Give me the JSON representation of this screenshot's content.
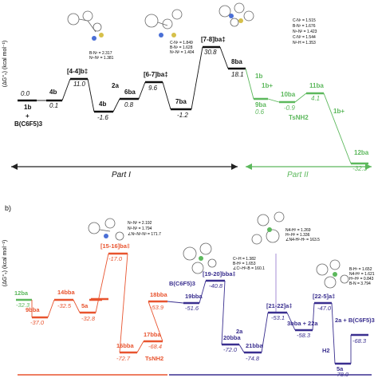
{
  "panel_a": {
    "ylabel": "(ΔG°ₛ) (kcal mol⁻¹)",
    "states": [
      {
        "label": "1b",
        "value": "0.0",
        "color": "black"
      },
      {
        "label": "+",
        "value": "",
        "color": "black"
      },
      {
        "label": "B(C6F5)3",
        "value": "",
        "color": "black"
      },
      {
        "label": "4b",
        "value": "0.1",
        "color": "black"
      },
      {
        "label": "[4-4]b‡",
        "value": "11.0",
        "color": "black"
      },
      {
        "label": "4b",
        "value": "-1.6",
        "color": "black"
      },
      {
        "label": "2a",
        "value": "",
        "color": "black"
      },
      {
        "label": "6ba",
        "value": "0.8",
        "color": "black"
      },
      {
        "label": "[6-7]ba‡",
        "value": "9.6",
        "color": "black"
      },
      {
        "label": "7ba",
        "value": "-1.2",
        "color": "black"
      },
      {
        "label": "[7-8]ba‡",
        "value": "30.8",
        "color": "black"
      },
      {
        "label": "8ba",
        "value": "18.1",
        "color": "black"
      },
      {
        "label": "1b",
        "value": "",
        "color": "green"
      },
      {
        "label": "1b+",
        "value": "",
        "color": "green"
      },
      {
        "label": "9ba",
        "value": "0.6",
        "color": "green"
      },
      {
        "label": "10ba",
        "value": "-0.9",
        "color": "green"
      },
      {
        "label": "11ba",
        "value": "4.1",
        "color": "green"
      },
      {
        "label": "TsNH2",
        "value": "",
        "color": "green"
      },
      {
        "label": "1b+",
        "value": "",
        "color": "green"
      },
      {
        "label": "12ba",
        "value": "-32.3",
        "color": "green"
      }
    ],
    "geometry_notes": [
      {
        "lines": [
          "B-N¹ = 2.317",
          "N¹-N² = 1.381"
        ]
      },
      {
        "lines": [
          "C-N¹ = 1.849",
          "B-N¹ = 1.628",
          "N¹-N² = 1.404"
        ]
      },
      {
        "lines": [
          "C-N¹ = 1.515",
          "B-N¹ = 1.676",
          "N¹-N² = 1.423",
          "C-N² = 1.544",
          "N²-H = 1.353"
        ]
      }
    ],
    "part_labels": [
      "Part I",
      "Part II"
    ]
  },
  "panel_b": {
    "panel_letter": "b)",
    "ylabel": "(ΔG°ₛ) (kcal mol⁻¹)",
    "states": [
      {
        "label": "12ba",
        "value": "-32.3",
        "color": "green"
      },
      {
        "label": "9bba",
        "value": "-37.0",
        "color": "red"
      },
      {
        "label": "14bba",
        "value": "-32.5",
        "color": "red"
      },
      {
        "label": "5a",
        "value": "-32.8",
        "color": "red"
      },
      {
        "label": "[15-16]ba‡",
        "value": "-17.0",
        "color": "red"
      },
      {
        "label": "16bba",
        "value": "-72.7",
        "color": "red"
      },
      {
        "label": "17bba",
        "value": "-68.4",
        "color": "red"
      },
      {
        "label": "TsNH2",
        "value": "",
        "color": "red"
      },
      {
        "label": "18bba",
        "value": "-53.9",
        "color": "red"
      },
      {
        "label": "B(C6F5)3",
        "value": "",
        "color": "navy"
      },
      {
        "label": "19bba",
        "value": "-51.6",
        "color": "navy"
      },
      {
        "label": "[19-20]bba‡",
        "value": "-40.8",
        "color": "navy"
      },
      {
        "label": "20bba",
        "value": "-72.0",
        "color": "navy"
      },
      {
        "label": "2a",
        "value": "",
        "color": "navy"
      },
      {
        "label": "21bba",
        "value": "-74.8",
        "color": "navy"
      },
      {
        "label": "[21-22]a‡",
        "value": "-53.1",
        "color": "navy"
      },
      {
        "label": "3bba + 22a",
        "value": "-58.3",
        "color": "navy"
      },
      {
        "label": "[22-5]a‡",
        "value": "-47.0",
        "color": "navy"
      },
      {
        "label": "H2",
        "value": "",
        "color": "navy"
      },
      {
        "label": "5a",
        "value": "-78.0",
        "color": "navy"
      },
      {
        "label": "2a + B(C6F5)3",
        "value": "-68.3",
        "color": "navy"
      }
    ],
    "geometry_notes": [
      {
        "lines": [
          "N¹-N² = 2.192",
          "N²-N³ = 1.794",
          "∠N¹-N²-N³ = 171.7"
        ]
      },
      {
        "lines": [
          "C¹-H = 1.382",
          "B-H² = 1.653",
          "∠C¹-H²-B = 160.1"
        ]
      },
      {
        "lines": [
          "N4-H² = 1.269",
          "H¹-H² = 1.336",
          "∠N4-H²-H¹ = 163.5"
        ]
      },
      {
        "lines": [
          "B-H¹ = 1.652",
          "N4-H² = 1.621",
          "H¹-H² = 0.843",
          "B-N = 3.794"
        ]
      }
    ]
  },
  "colors": {
    "black": "#111111",
    "green": "#5cb85c",
    "red": "#e8542f",
    "navy": "#3a2f8f",
    "arrow_black": "#222222"
  }
}
